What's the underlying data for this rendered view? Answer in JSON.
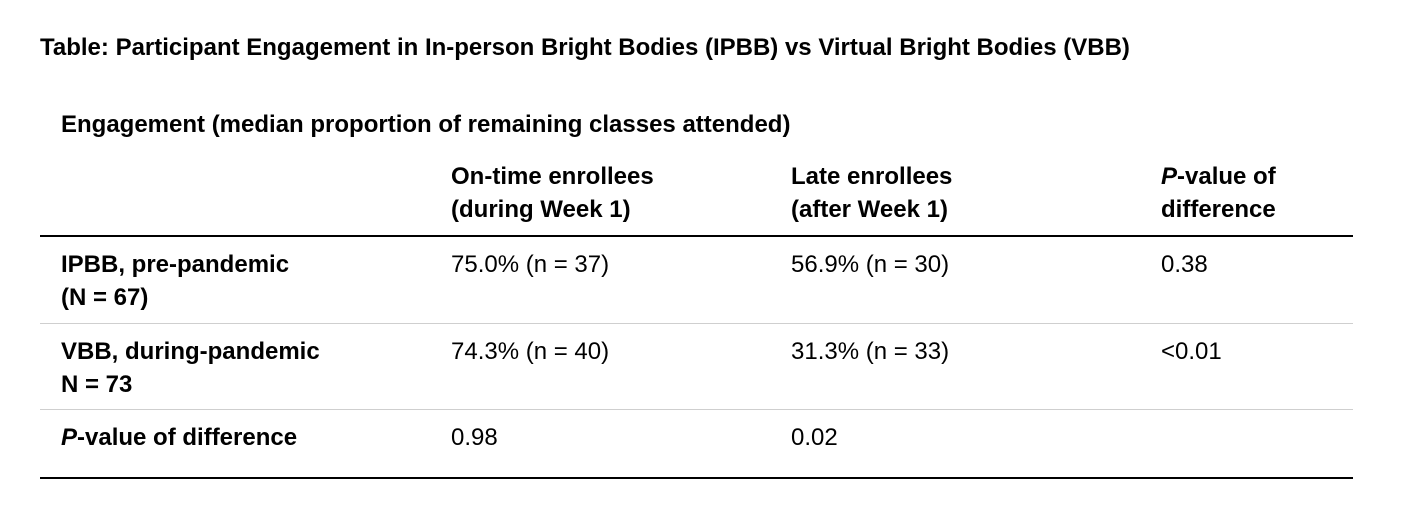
{
  "title": "Table: Participant Engagement in In-person Bright Bodies (IPBB) vs Virtual Bright Bodies (VBB)",
  "subtitle": "Engagement (median proportion of remaining classes attended)",
  "header": {
    "col1_line1": "On-time enrollees",
    "col1_line2": "(during Week 1)",
    "col2_line1": "Late enrollees",
    "col2_line2": "(after Week 1)",
    "col3_italic": "P",
    "col3_line1_rest": "-value of",
    "col3_line2": "difference"
  },
  "rows": [
    {
      "label_line1": "IPBB, pre-pandemic",
      "label_line2": "(N = 67)",
      "on_time": "75.0% (n = 37)",
      "late": "56.9% (n = 30)",
      "p_value": "0.38"
    },
    {
      "label_line1": "VBB, during-pandemic",
      "label_line2": "N = 73",
      "on_time": "74.3% (n = 40)",
      "late": "31.3% (n = 33)",
      "p_value": "<0.01"
    }
  ],
  "p_row": {
    "label_italic": "P",
    "label_rest": "-value of difference",
    "on_time": "0.98",
    "late": "0.02"
  }
}
